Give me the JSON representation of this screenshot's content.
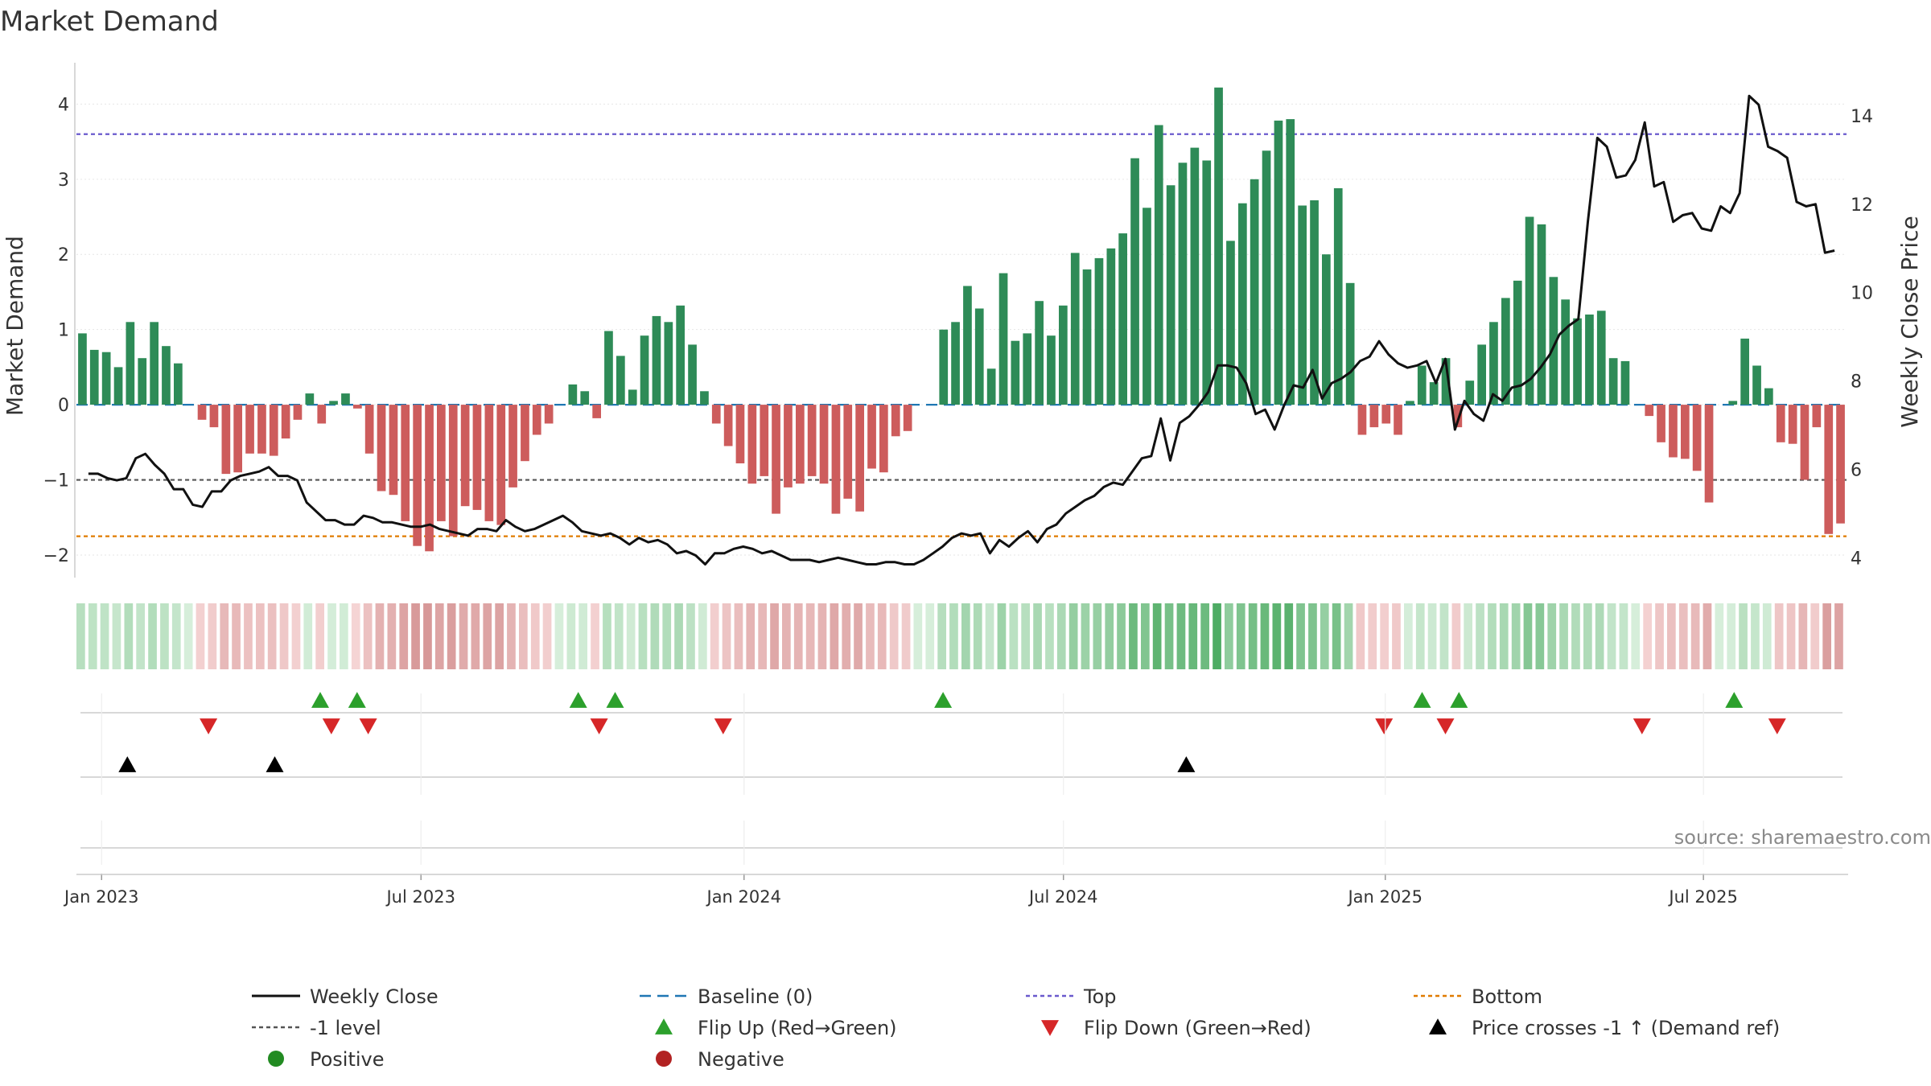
{
  "title": "Market Demand",
  "source": "source: sharemaestro.com",
  "chart_data": {
    "type": "bar",
    "title": "Market Demand",
    "ylabel": "Market Demand",
    "y2label": "Weekly Close Price",
    "ylim": [
      -2.3,
      4.55
    ],
    "y2lim": [
      3.55,
      15.2
    ],
    "yticks": [
      "−2",
      "−1",
      "0",
      "1",
      "2",
      "3",
      "4"
    ],
    "y2ticks": [
      "4",
      "6",
      "8",
      "10",
      "12",
      "14"
    ],
    "x_ticks": [
      {
        "label": "Jan 2023",
        "week": 1
      },
      {
        "label": "Jul 2023",
        "week": 27
      },
      {
        "label": "Jan 2024",
        "week": 53.3
      },
      {
        "label": "Jul 2024",
        "week": 79.3
      },
      {
        "label": "Jan 2025",
        "week": 105.5
      },
      {
        "label": "Jul 2025",
        "week": 131.4
      }
    ],
    "reference_lines": {
      "top": 3.6,
      "bottom": -1.75,
      "minus_one": -1,
      "baseline": 0
    },
    "demand": [
      0.95,
      0.73,
      0.7,
      0.5,
      1.1,
      0.62,
      1.1,
      0.78,
      0.55,
      0,
      -0.2,
      -0.3,
      -0.92,
      -0.9,
      -0.65,
      -0.65,
      -0.68,
      -0.45,
      -0.2,
      0.15,
      -0.25,
      0.05,
      0.15,
      -0.05,
      -0.65,
      -1.15,
      -1.2,
      -1.55,
      -1.88,
      -1.95,
      -1.55,
      -1.75,
      -1.35,
      -1.4,
      -1.55,
      -1.6,
      -1.1,
      -0.75,
      -0.4,
      -0.25,
      0,
      0.27,
      0.18,
      -0.18,
      0.98,
      0.65,
      0.2,
      0.92,
      1.18,
      1.1,
      1.32,
      0.8,
      0.18,
      -0.25,
      -0.55,
      -0.78,
      -1.05,
      -0.95,
      -1.45,
      -1.1,
      -1.05,
      -0.95,
      -1.05,
      -1.45,
      -1.25,
      -1.42,
      -0.85,
      -0.9,
      -0.42,
      -0.35,
      0,
      0,
      1,
      1.1,
      1.58,
      1.28,
      0.48,
      1.75,
      0.85,
      0.95,
      1.38,
      0.92,
      1.32,
      2.02,
      1.8,
      1.95,
      2.08,
      2.28,
      3.28,
      2.62,
      3.72,
      2.92,
      3.22,
      3.42,
      3.25,
      4.22,
      2.18,
      2.68,
      3,
      3.38,
      3.78,
      3.8,
      2.65,
      2.72,
      2,
      2.88,
      1.62,
      -0.4,
      -0.3,
      -0.25,
      -0.4,
      0.05,
      0.52,
      0.3,
      0.62,
      -0.3,
      0.32,
      0.8,
      1.1,
      1.42,
      1.65,
      2.5,
      2.4,
      1.7,
      1.4,
      1.15,
      1.2,
      1.25,
      0.62,
      0.58,
      0,
      -0.15,
      -0.5,
      -0.7,
      -0.72,
      -0.88,
      -1.3,
      0,
      0.05,
      0.88,
      0.52,
      0.22,
      -0.5,
      -0.52,
      -1,
      -0.3,
      -1.72,
      -1.58
    ],
    "weekly_close": [
      5.9,
      5.9,
      5.8,
      5.75,
      5.8,
      6.25,
      6.35,
      6.1,
      5.9,
      5.55,
      5.55,
      5.2,
      5.15,
      5.5,
      5.5,
      5.75,
      5.85,
      5.9,
      5.95,
      6.05,
      5.85,
      5.85,
      5.75,
      5.25,
      5.05,
      4.85,
      4.85,
      4.75,
      4.75,
      4.95,
      4.9,
      4.8,
      4.8,
      4.75,
      4.7,
      4.7,
      4.75,
      4.65,
      4.6,
      4.55,
      4.5,
      4.65,
      4.65,
      4.6,
      4.85,
      4.7,
      4.6,
      4.65,
      4.75,
      4.85,
      4.95,
      4.8,
      4.6,
      4.55,
      4.5,
      4.55,
      4.45,
      4.3,
      4.45,
      4.35,
      4.4,
      4.3,
      4.1,
      4.15,
      4.05,
      3.85,
      4.1,
      4.1,
      4.2,
      4.25,
      4.2,
      4.1,
      4.15,
      4.05,
      3.95,
      3.95,
      3.95,
      3.9,
      3.95,
      4,
      3.95,
      3.9,
      3.85,
      3.85,
      3.9,
      3.9,
      3.85,
      3.85,
      3.95,
      4.1,
      4.25,
      4.45,
      4.55,
      4.5,
      4.55,
      4.1,
      4.4,
      4.25,
      4.45,
      4.6,
      4.35,
      4.65,
      4.75,
      5,
      5.15,
      5.3,
      5.4,
      5.6,
      5.7,
      5.65,
      5.95,
      6.25,
      6.3,
      7.15,
      6.2,
      7.05,
      7.2,
      7.45,
      7.75,
      8.35,
      8.35,
      8.3,
      7.95,
      7.25,
      7.35,
      6.9,
      7.45,
      7.9,
      7.85,
      8.25,
      7.6,
      7.95,
      8.05,
      8.2,
      8.45,
      8.55,
      8.9,
      8.6,
      8.4,
      8.3,
      8.35,
      8.45,
      7.95,
      8.5,
      6.9,
      7.55,
      7.25,
      7.1,
      7.7,
      7.55,
      7.85,
      7.9,
      8.05,
      8.3,
      8.6,
      9.05,
      9.25,
      9.4,
      11.6,
      13.5,
      13.3,
      12.6,
      12.65,
      13,
      13.85,
      12.4,
      12.5,
      11.6,
      11.75,
      11.8,
      11.45,
      11.4,
      11.95,
      11.8,
      12.25,
      14.45,
      14.25,
      13.3,
      13.2,
      13.05,
      12.05,
      11.95,
      12,
      10.9,
      10.95
    ],
    "flip_up_weeks": [
      18.8,
      21.8,
      39.8,
      42.8,
      69.5,
      108.5,
      111.5,
      133.9
    ],
    "flip_down_weeks": [
      9.7,
      19.7,
      22.7,
      41.5,
      51.6,
      105.4,
      110.4,
      126.4,
      137.4
    ],
    "price_cross_weeks": [
      3.1,
      15.1,
      89.3
    ],
    "legend": [
      "Weekly Close",
      "Baseline (0)",
      "Top",
      "Bottom",
      "-1 level",
      "Flip Up (Red→Green)",
      "Flip Down (Green→Red)",
      "Price crosses -1 ↑ (Demand ref)",
      "Positive",
      "Negative"
    ]
  },
  "colors": {
    "positive_bar": "#2e8b57",
    "negative_bar": "#cd5c5c",
    "close_line": "#111111",
    "baseline": "#1f77b4",
    "top_line": "#6a5acd",
    "bottom_line": "#e07b00",
    "minus_one_line": "#555555",
    "flip_up": "#2ca02c",
    "flip_down": "#d62728",
    "price_cross": "#000000",
    "positive_dot": "#228b22",
    "negative_dot": "#b22222"
  }
}
